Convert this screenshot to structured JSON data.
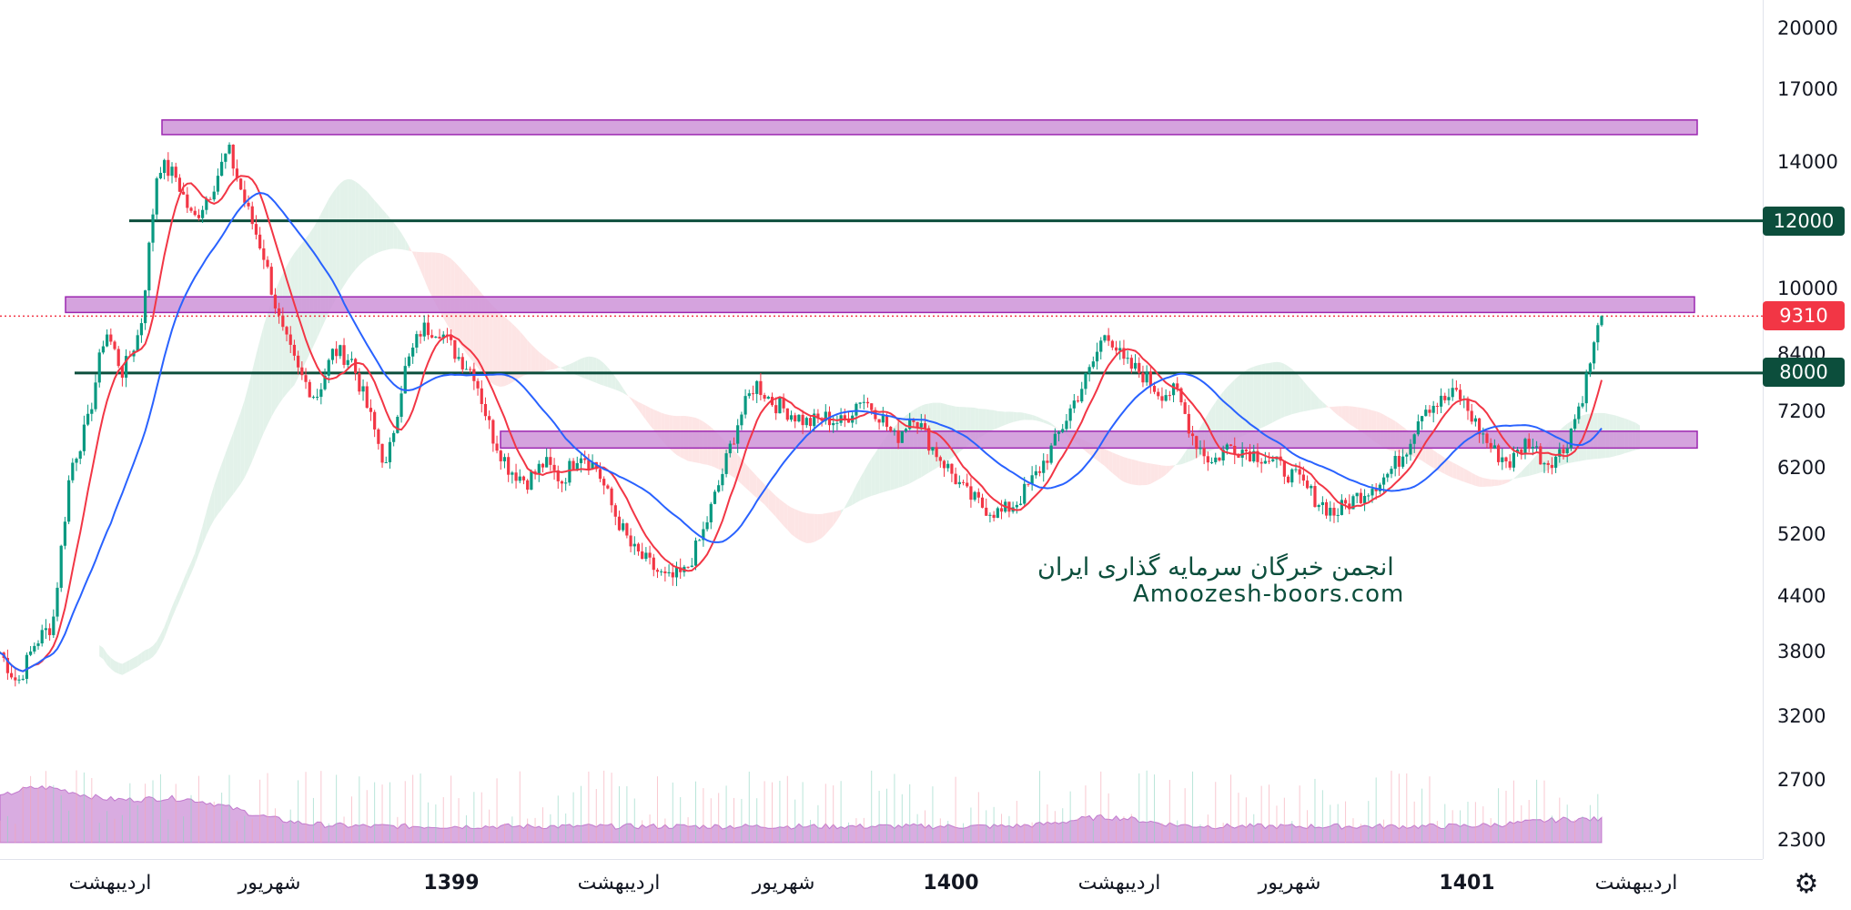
{
  "chart_data": {
    "type": "candlestick",
    "price_axis": {
      "scale": "log",
      "ticks": [
        20000,
        17000,
        14000,
        12000,
        10000,
        9310,
        8400,
        8000,
        7200,
        6200,
        5200,
        4400,
        3800,
        3200,
        2700,
        2300
      ],
      "range": [
        2100,
        22000
      ]
    },
    "price_ticks_display": [
      "20000",
      "17000",
      "14000",
      "10000",
      "8400",
      "7200",
      "6200",
      "5200",
      "4400",
      "3800",
      "3200",
      "2700",
      "2300"
    ],
    "time_axis": {
      "labels": [
        {
          "text": "اردیبهشت",
          "bold": false
        },
        {
          "text": "شهریور",
          "bold": false
        },
        {
          "text": "1399",
          "bold": true
        },
        {
          "text": "اردیبهشت",
          "bold": false
        },
        {
          "text": "شهریور",
          "bold": false
        },
        {
          "text": "1400",
          "bold": true
        },
        {
          "text": "اردیبهشت",
          "bold": false
        },
        {
          "text": "شهریور",
          "bold": false
        },
        {
          "text": "1401",
          "bold": true
        },
        {
          "text": "اردیبهشت",
          "bold": false
        }
      ]
    },
    "horizontal_lines": [
      {
        "value": 12000,
        "label": "12000",
        "color": "#0c4e3c"
      },
      {
        "value": 8000,
        "label": "8000",
        "color": "#0c4e3c"
      }
    ],
    "last_price": {
      "value": 9310,
      "label": "9310",
      "color": "#f23645"
    },
    "zones": [
      {
        "low": 15100,
        "high": 15700,
        "color": "#ce93d8"
      },
      {
        "low": 9400,
        "high": 9800,
        "color": "#ce93d8"
      },
      {
        "low": 6550,
        "high": 6850,
        "color": "#ce93d8"
      }
    ],
    "price_path": [
      [
        0.0,
        3800
      ],
      [
        0.01,
        3500
      ],
      [
        0.02,
        3900
      ],
      [
        0.03,
        4100
      ],
      [
        0.04,
        6200
      ],
      [
        0.05,
        7000
      ],
      [
        0.06,
        9000
      ],
      [
        0.07,
        8000
      ],
      [
        0.08,
        9000
      ],
      [
        0.09,
        14000
      ],
      [
        0.1,
        13500
      ],
      [
        0.11,
        12000
      ],
      [
        0.12,
        13000
      ],
      [
        0.13,
        14500
      ],
      [
        0.14,
        12500
      ],
      [
        0.15,
        11000
      ],
      [
        0.16,
        9000
      ],
      [
        0.17,
        8000
      ],
      [
        0.18,
        7500
      ],
      [
        0.19,
        8500
      ],
      [
        0.2,
        8300
      ],
      [
        0.21,
        7200
      ],
      [
        0.22,
        6200
      ],
      [
        0.23,
        8000
      ],
      [
        0.24,
        9000
      ],
      [
        0.25,
        9000
      ],
      [
        0.26,
        8400
      ],
      [
        0.27,
        8000
      ],
      [
        0.28,
        6800
      ],
      [
        0.29,
        6200
      ],
      [
        0.3,
        6000
      ],
      [
        0.31,
        6300
      ],
      [
        0.32,
        6000
      ],
      [
        0.33,
        6500
      ],
      [
        0.34,
        6200
      ],
      [
        0.35,
        5500
      ],
      [
        0.36,
        5000
      ],
      [
        0.37,
        4800
      ],
      [
        0.38,
        4600
      ],
      [
        0.39,
        4700
      ],
      [
        0.4,
        5200
      ],
      [
        0.41,
        6000
      ],
      [
        0.42,
        7000
      ],
      [
        0.43,
        7800
      ],
      [
        0.44,
        7400
      ],
      [
        0.45,
        7200
      ],
      [
        0.46,
        7000
      ],
      [
        0.47,
        7100
      ],
      [
        0.48,
        7000
      ],
      [
        0.49,
        7500
      ],
      [
        0.5,
        7200
      ],
      [
        0.51,
        6700
      ],
      [
        0.52,
        7200
      ],
      [
        0.53,
        6600
      ],
      [
        0.54,
        6200
      ],
      [
        0.55,
        5800
      ],
      [
        0.56,
        5600
      ],
      [
        0.57,
        5500
      ],
      [
        0.58,
        5700
      ],
      [
        0.59,
        6100
      ],
      [
        0.6,
        6600
      ],
      [
        0.61,
        7300
      ],
      [
        0.62,
        8000
      ],
      [
        0.63,
        9000
      ],
      [
        0.64,
        8200
      ],
      [
        0.65,
        8000
      ],
      [
        0.66,
        7600
      ],
      [
        0.67,
        7600
      ],
      [
        0.68,
        6700
      ],
      [
        0.69,
        6300
      ],
      [
        0.7,
        6600
      ],
      [
        0.71,
        6500
      ],
      [
        0.72,
        6400
      ],
      [
        0.73,
        6200
      ],
      [
        0.74,
        6000
      ],
      [
        0.75,
        5700
      ],
      [
        0.76,
        5500
      ],
      [
        0.77,
        5700
      ],
      [
        0.78,
        5900
      ],
      [
        0.79,
        6100
      ],
      [
        0.8,
        6500
      ],
      [
        0.81,
        7300
      ],
      [
        0.82,
        7400
      ],
      [
        0.83,
        7600
      ],
      [
        0.84,
        7000
      ],
      [
        0.85,
        6500
      ],
      [
        0.86,
        6300
      ],
      [
        0.87,
        6700
      ],
      [
        0.88,
        6300
      ],
      [
        0.89,
        6500
      ],
      [
        0.9,
        7400
      ],
      [
        0.91,
        9000
      ],
      [
        0.912,
        9310
      ]
    ],
    "moving_averages": [
      {
        "color": "#f23645",
        "period": "short"
      },
      {
        "color": "#2962ff",
        "period": "long"
      }
    ],
    "volume": {
      "color": "#ba68c8"
    }
  },
  "watermark": {
    "line1": "انجمن خبرگان سرمایه گذاری ایران",
    "line2": "Amoozesh-boors.com"
  },
  "colors": {
    "up": "#089981",
    "down": "#f23645",
    "cloud_green": "#e3f2ea",
    "cloud_red": "#fde5e5"
  },
  "settings_icon": "gear-icon"
}
